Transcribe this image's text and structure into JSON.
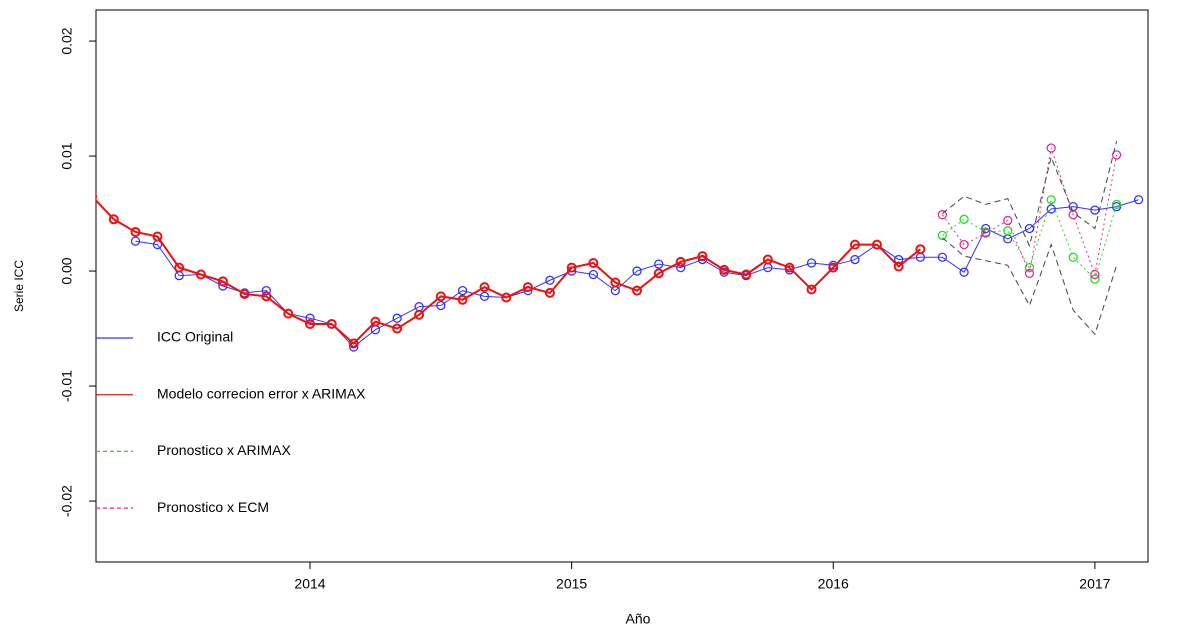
{
  "chart_data": {
    "type": "line",
    "x_label": "Año",
    "y_label": "Serie ICC",
    "xlim": [
      2013.182,
      2017.203
    ],
    "ylim": [
      -0.0253,
      0.0227
    ],
    "xticks": [
      2014,
      2015,
      2016,
      2017
    ],
    "yticks": [
      -0.02,
      -0.01,
      {
        "value": 0,
        "label": "0.00"
      },
      0.01,
      0.02
    ],
    "legend": "left",
    "series": [
      {
        "name": "ICC Original",
        "color": "#3333ff",
        "style": "solid",
        "width": 1,
        "points": true,
        "x": [
          2013.333,
          2013.417,
          2013.5,
          2013.583,
          2013.667,
          2013.75,
          2013.833,
          2013.917,
          2014.0,
          2014.083,
          2014.167,
          2014.25,
          2014.333,
          2014.417,
          2014.5,
          2014.583,
          2014.667,
          2014.75,
          2014.833,
          2014.917,
          2015.0,
          2015.083,
          2015.167,
          2015.25,
          2015.333,
          2015.417,
          2015.5,
          2015.583,
          2015.667,
          2015.75,
          2015.833,
          2015.917,
          2016.0,
          2016.083,
          2016.167,
          2016.25,
          2016.333,
          2016.417,
          2016.5,
          2016.583,
          2016.667,
          2016.75,
          2016.833,
          2016.917,
          2017.0,
          2017.083,
          2017.167
        ],
        "values": [
          0.0026,
          0.0023,
          -0.0004,
          -0.0003,
          -0.0013,
          -0.0019,
          -0.0017,
          -0.0037,
          -0.0041,
          -0.0046,
          -0.0066,
          -0.0051,
          -0.0041,
          -0.0031,
          -0.003,
          -0.0017,
          -0.0022,
          -0.0023,
          -0.0017,
          -0.0008,
          0.0,
          -0.0003,
          -0.0017,
          0.0,
          0.0006,
          0.0003,
          0.001,
          -0.0001,
          -0.0004,
          0.0003,
          0.0001,
          0.0007,
          0.0005,
          0.001,
          0.0023,
          0.001,
          0.0012,
          0.0012,
          -0.0001,
          0.0037,
          0.0028,
          0.0037,
          0.0054,
          0.0056,
          0.0053,
          0.0056,
          0.0062
        ]
      },
      {
        "name": "Modelo correcion error x ARIMAX",
        "color": "#ee1111",
        "style": "solid",
        "width": 2,
        "points": true,
        "x": [
          2013.167,
          2013.25,
          2013.333,
          2013.417,
          2013.5,
          2013.583,
          2013.667,
          2013.75,
          2013.833,
          2013.917,
          2014.0,
          2014.083,
          2014.167,
          2014.25,
          2014.333,
          2014.417,
          2014.5,
          2014.583,
          2014.667,
          2014.75,
          2014.833,
          2014.917,
          2015.0,
          2015.083,
          2015.167,
          2015.25,
          2015.333,
          2015.417,
          2015.5,
          2015.583,
          2015.667,
          2015.75,
          2015.833,
          2015.917,
          2016.0,
          2016.083,
          2016.167,
          2016.25,
          2016.333
        ],
        "values": [
          0.0065,
          0.0045,
          0.0034,
          0.003,
          0.0003,
          -0.0003,
          -0.0009,
          -0.002,
          -0.0022,
          -0.0037,
          -0.0046,
          -0.0046,
          -0.0063,
          -0.0044,
          -0.005,
          -0.0038,
          -0.0022,
          -0.0025,
          -0.0014,
          -0.0023,
          -0.0014,
          -0.0019,
          0.0003,
          0.0007,
          -0.001,
          -0.0017,
          -0.0002,
          0.0008,
          0.0013,
          0.0001,
          -0.0003,
          0.001,
          0.0003,
          -0.0016,
          0.0003,
          0.0023,
          0.0023,
          0.0004,
          0.0019
        ]
      },
      {
        "name": "Pronostico x ARIMAX",
        "color": "#22dd22",
        "style": "dotted",
        "width": 1,
        "points": true,
        "x": [
          2016.417,
          2016.5,
          2016.583,
          2016.667,
          2016.75,
          2016.833,
          2016.917,
          2017.0,
          2017.083
        ],
        "values": [
          0.0031,
          0.0045,
          0.0034,
          0.0035,
          0.0003,
          0.0062,
          0.0012,
          -0.0007,
          0.0058
        ]
      },
      {
        "name": "Pronostico x ECM",
        "color": "#dd2f8f",
        "style": "dotted",
        "width": 1,
        "points": true,
        "x": [
          2016.417,
          2016.5,
          2016.583,
          2016.667,
          2016.75,
          2016.833,
          2016.917,
          2017.0,
          2017.083
        ],
        "values": [
          0.0049,
          0.0023,
          0.0033,
          0.0044,
          -0.0002,
          0.0107,
          0.0049,
          -0.0003,
          0.0101
        ]
      },
      {
        "color": "#444444",
        "style": "dashed",
        "width": 1,
        "points": false,
        "x": [
          2016.417,
          2016.5,
          2016.583,
          2016.667,
          2016.75,
          2016.833,
          2016.917,
          2017.0,
          2017.083
        ],
        "values": [
          0.005,
          0.0065,
          0.0058,
          0.0063,
          0.0022,
          0.0099,
          0.0051,
          0.0037,
          0.0113
        ]
      },
      {
        "color": "#444444",
        "style": "dashed",
        "width": 1,
        "points": false,
        "x": [
          2016.417,
          2016.5,
          2016.583,
          2016.667,
          2016.75,
          2016.833,
          2016.917,
          2017.0,
          2017.083
        ],
        "values": [
          0.0029,
          0.0013,
          0.0009,
          0.0005,
          -0.003,
          0.0023,
          -0.0034,
          -0.0055,
          0.0005
        ]
      }
    ]
  }
}
